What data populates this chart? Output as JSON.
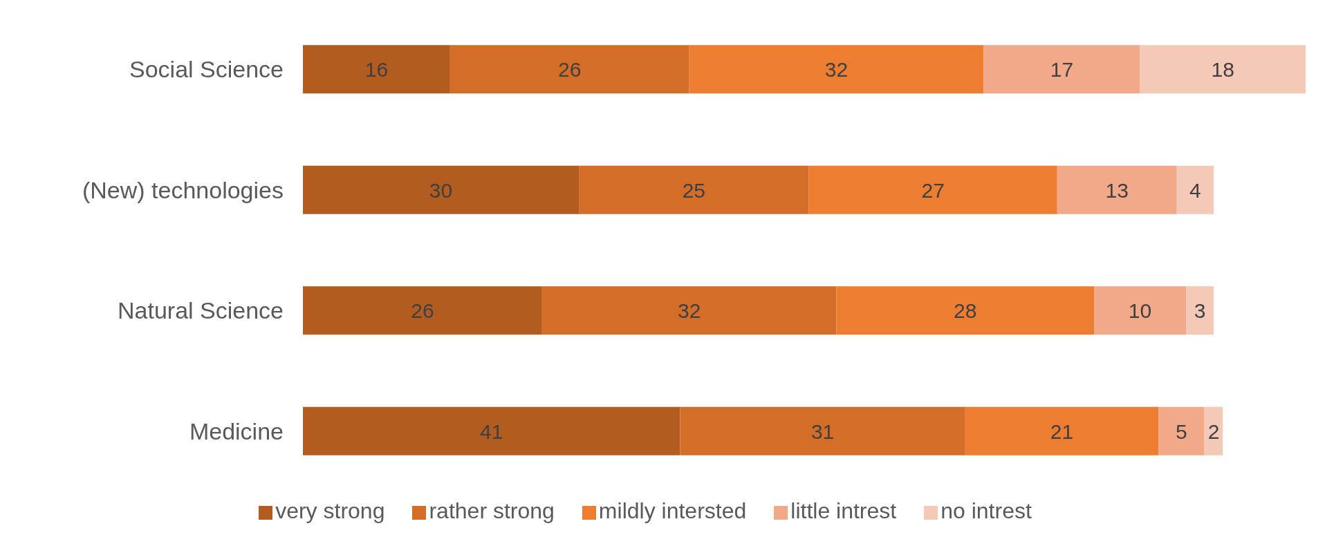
{
  "chart_data": {
    "type": "bar",
    "orientation": "horizontal",
    "stacked": true,
    "data_labels": true,
    "legend": "bottom",
    "grid": false,
    "categories": [
      "Social Science",
      "(New) technologies",
      "Natural Science",
      "Medicine"
    ],
    "series": [
      {
        "name": "very strong",
        "color": "#b35c20",
        "values": [
          16,
          30,
          26,
          41
        ]
      },
      {
        "name": "rather strong",
        "color": "#d46d28",
        "values": [
          26,
          25,
          32,
          31
        ]
      },
      {
        "name": "mildly intersted",
        "color": "#ed7d31",
        "values": [
          32,
          27,
          28,
          21
        ]
      },
      {
        "name": "little intrest",
        "color": "#f2a98a",
        "values": [
          17,
          13,
          10,
          5
        ]
      },
      {
        "name": "no intrest",
        "color": "#f5c9b8",
        "values": [
          18,
          4,
          3,
          2
        ]
      }
    ]
  }
}
